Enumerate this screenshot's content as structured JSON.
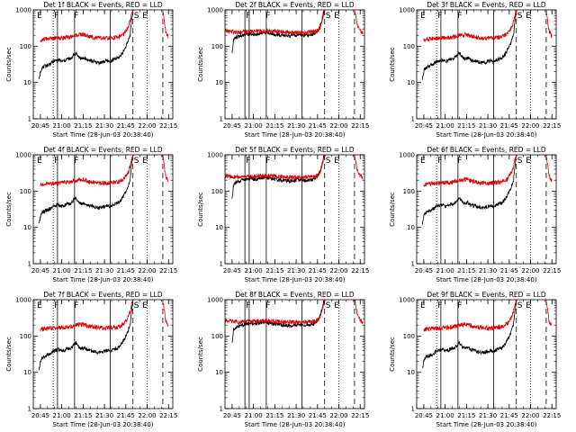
{
  "figure": {
    "background": "#ffffff",
    "axis_color": "#000000",
    "events_color": "#000000",
    "lld_color": "#dd0000"
  },
  "chart_data": {
    "type": "line",
    "layout": "3x3 grid",
    "ylabel": "Counts/sec",
    "xlabel": "Start Time (28-Jun-03 20:38:40)",
    "y_scale": "log",
    "ylim": [
      1,
      1000
    ],
    "y_ticks": [
      1,
      10,
      100,
      1000
    ],
    "y_tick_labels": [
      "1",
      "10",
      "100",
      "1000"
    ],
    "xlim_minutes_after_2030": [
      10,
      108
    ],
    "x_ticks_minutes_after_2030": [
      15,
      30,
      45,
      60,
      75,
      90,
      105
    ],
    "x_tick_labels": [
      "20:45",
      "21:00",
      "21:15",
      "21:30",
      "21:45",
      "22:00",
      "22:15"
    ],
    "panels": [
      {
        "title": "Det 1f BLACK = Events, RED = LLD",
        "lld_start_min": 15,
        "vlines": [
          {
            "x": 24,
            "style": "dotted"
          },
          {
            "x": 27,
            "style": "solid"
          },
          {
            "x": 39,
            "style": "solid"
          },
          {
            "x": 64,
            "style": "solid"
          }
        ],
        "dashed": [
          80,
          101
        ],
        "dotted": [
          90
        ],
        "labels": [
          {
            "x": 12,
            "text": "E"
          },
          {
            "x": 24,
            "text": "F"
          },
          {
            "x": 38,
            "text": "F"
          },
          {
            "x": 80,
            "text": "S"
          },
          {
            "x": 86,
            "text": "E"
          }
        ]
      },
      {
        "title": "Det 2f BLACK = Events, RED = LLD",
        "lld_start_min": 10,
        "vlines": [
          {
            "x": 24,
            "style": "solid"
          },
          {
            "x": 27,
            "style": "solid"
          },
          {
            "x": 39,
            "style": "solid"
          },
          {
            "x": 64,
            "style": "solid"
          }
        ],
        "dashed": [
          80,
          101
        ],
        "dotted": [
          90
        ],
        "labels": [
          {
            "x": 24,
            "text": "F"
          },
          {
            "x": 38,
            "text": "F"
          },
          {
            "x": 80,
            "text": "S"
          },
          {
            "x": 86,
            "text": "E"
          }
        ]
      },
      {
        "title": "Det 3f BLACK = Events, RED = LLD",
        "lld_start_min": 15,
        "vlines": [
          {
            "x": 24,
            "style": "dotted"
          },
          {
            "x": 27,
            "style": "solid"
          },
          {
            "x": 39,
            "style": "solid"
          },
          {
            "x": 64,
            "style": "solid"
          }
        ],
        "dashed": [
          80,
          101
        ],
        "dotted": [
          90
        ],
        "labels": [
          {
            "x": 12,
            "text": "E"
          },
          {
            "x": 24,
            "text": "F"
          },
          {
            "x": 38,
            "text": "F"
          },
          {
            "x": 80,
            "text": "S"
          },
          {
            "x": 86,
            "text": "E"
          }
        ]
      },
      {
        "title": "Det 4f BLACK = Events, RED = LLD",
        "lld_start_min": 15,
        "vlines": [
          {
            "x": 24,
            "style": "dotted"
          },
          {
            "x": 27,
            "style": "solid"
          },
          {
            "x": 39,
            "style": "solid"
          },
          {
            "x": 64,
            "style": "solid"
          }
        ],
        "dashed": [
          80,
          101
        ],
        "dotted": [
          90
        ],
        "labels": [
          {
            "x": 12,
            "text": "E"
          },
          {
            "x": 24,
            "text": "F"
          },
          {
            "x": 38,
            "text": "F"
          },
          {
            "x": 80,
            "text": "S"
          },
          {
            "x": 86,
            "text": "E"
          }
        ]
      },
      {
        "title": "Det 5f BLACK = Events, RED = LLD",
        "lld_start_min": 10,
        "vlines": [
          {
            "x": 24,
            "style": "solid"
          },
          {
            "x": 27,
            "style": "solid"
          },
          {
            "x": 39,
            "style": "solid"
          },
          {
            "x": 64,
            "style": "solid"
          }
        ],
        "dashed": [
          80,
          101
        ],
        "dotted": [
          90
        ],
        "labels": [
          {
            "x": 24,
            "text": "F"
          },
          {
            "x": 38,
            "text": "F"
          },
          {
            "x": 80,
            "text": "S"
          },
          {
            "x": 86,
            "text": "E"
          }
        ]
      },
      {
        "title": "Det 6f BLACK = Events, RED = LLD",
        "lld_start_min": 15,
        "vlines": [
          {
            "x": 24,
            "style": "dotted"
          },
          {
            "x": 27,
            "style": "solid"
          },
          {
            "x": 39,
            "style": "solid"
          },
          {
            "x": 64,
            "style": "solid"
          }
        ],
        "dashed": [
          80,
          101
        ],
        "dotted": [
          90
        ],
        "labels": [
          {
            "x": 12,
            "text": "E"
          },
          {
            "x": 24,
            "text": "F"
          },
          {
            "x": 38,
            "text": "F"
          },
          {
            "x": 80,
            "text": "S"
          },
          {
            "x": 86,
            "text": "E"
          }
        ]
      },
      {
        "title": "Det 7f BLACK = Events, RED = LLD",
        "lld_start_min": 15,
        "vlines": [
          {
            "x": 24,
            "style": "dotted"
          },
          {
            "x": 27,
            "style": "solid"
          },
          {
            "x": 39,
            "style": "solid"
          },
          {
            "x": 64,
            "style": "solid"
          }
        ],
        "dashed": [
          80,
          101
        ],
        "dotted": [
          90
        ],
        "labels": [
          {
            "x": 12,
            "text": "E"
          },
          {
            "x": 24,
            "text": "F"
          },
          {
            "x": 38,
            "text": "F"
          },
          {
            "x": 80,
            "text": "S"
          },
          {
            "x": 86,
            "text": "E"
          }
        ]
      },
      {
        "title": "Det 8f BLACK = Events, RED = LLD",
        "lld_start_min": 10,
        "vlines": [
          {
            "x": 24,
            "style": "solid"
          },
          {
            "x": 27,
            "style": "solid"
          },
          {
            "x": 39,
            "style": "solid"
          },
          {
            "x": 64,
            "style": "solid"
          }
        ],
        "dashed": [
          80,
          101
        ],
        "dotted": [
          90
        ],
        "labels": [
          {
            "x": 24,
            "text": "F"
          },
          {
            "x": 38,
            "text": "F"
          },
          {
            "x": 80,
            "text": "S"
          },
          {
            "x": 86,
            "text": "E"
          }
        ]
      },
      {
        "title": "Det 9f BLACK = Events, RED = LLD",
        "lld_start_min": 15,
        "vlines": [
          {
            "x": 24,
            "style": "dotted"
          },
          {
            "x": 27,
            "style": "solid"
          },
          {
            "x": 39,
            "style": "solid"
          },
          {
            "x": 64,
            "style": "solid"
          }
        ],
        "dashed": [
          80,
          101
        ],
        "dotted": [
          90
        ],
        "labels": [
          {
            "x": 12,
            "text": "E"
          },
          {
            "x": 24,
            "text": "F"
          },
          {
            "x": 38,
            "text": "F"
          },
          {
            "x": 80,
            "text": "S"
          },
          {
            "x": 86,
            "text": "E"
          }
        ]
      }
    ],
    "series": [
      {
        "name": "Events",
        "color": "#000000",
        "panel": [
          1,
          3,
          4,
          6,
          7,
          9
        ],
        "x_min": [
          14,
          15,
          16,
          18,
          20,
          22,
          24,
          26,
          28,
          30,
          32,
          34,
          36,
          38,
          40,
          42,
          44,
          46,
          48,
          50,
          52,
          54,
          56,
          58,
          60,
          62,
          64,
          66,
          68,
          70,
          72,
          74,
          76,
          78,
          79,
          80
        ],
        "y": [
          12,
          20,
          25,
          28,
          30,
          33,
          38,
          40,
          42,
          38,
          40,
          45,
          44,
          55,
          65,
          50,
          45,
          48,
          42,
          40,
          38,
          36,
          35,
          36,
          38,
          40,
          37,
          42,
          45,
          48,
          60,
          80,
          120,
          200,
          500,
          900
        ]
      },
      {
        "name": "LLD",
        "color": "#dd0000",
        "panel": [
          1,
          3,
          4,
          6,
          7,
          9
        ],
        "x_min": [
          15,
          20,
          25,
          30,
          35,
          40,
          45,
          50,
          55,
          60,
          65,
          70,
          74,
          77,
          79,
          80,
          101,
          103,
          105
        ],
        "y": [
          150,
          160,
          165,
          170,
          175,
          200,
          210,
          180,
          170,
          165,
          170,
          180,
          220,
          350,
          700,
          1000,
          1000,
          260,
          180
        ]
      },
      {
        "name": "Events",
        "color": "#000000",
        "panel": [
          2,
          5,
          8
        ],
        "x_min": [
          15,
          16,
          18,
          20,
          22,
          24,
          26,
          28,
          30,
          32,
          34,
          36,
          38,
          40,
          42,
          44,
          46,
          48,
          50,
          52,
          54,
          56,
          58,
          60,
          62,
          64,
          66,
          68,
          70,
          72,
          74,
          76,
          78,
          79,
          80
        ],
        "y": [
          60,
          150,
          180,
          190,
          200,
          210,
          215,
          220,
          215,
          210,
          225,
          230,
          240,
          235,
          225,
          215,
          210,
          205,
          200,
          195,
          195,
          190,
          195,
          200,
          205,
          200,
          198,
          200,
          205,
          215,
          240,
          300,
          500,
          800,
          1000
        ]
      },
      {
        "name": "LLD",
        "color": "#dd0000",
        "panel": [
          2,
          5,
          8
        ],
        "x_min": [
          10,
          15,
          20,
          25,
          30,
          35,
          40,
          45,
          50,
          55,
          60,
          65,
          70,
          74,
          77,
          79,
          80,
          101,
          103,
          105,
          107
        ],
        "y": [
          260,
          250,
          245,
          250,
          255,
          260,
          265,
          255,
          245,
          240,
          240,
          240,
          245,
          260,
          330,
          700,
          1000,
          1000,
          400,
          260,
          230
        ]
      }
    ]
  }
}
